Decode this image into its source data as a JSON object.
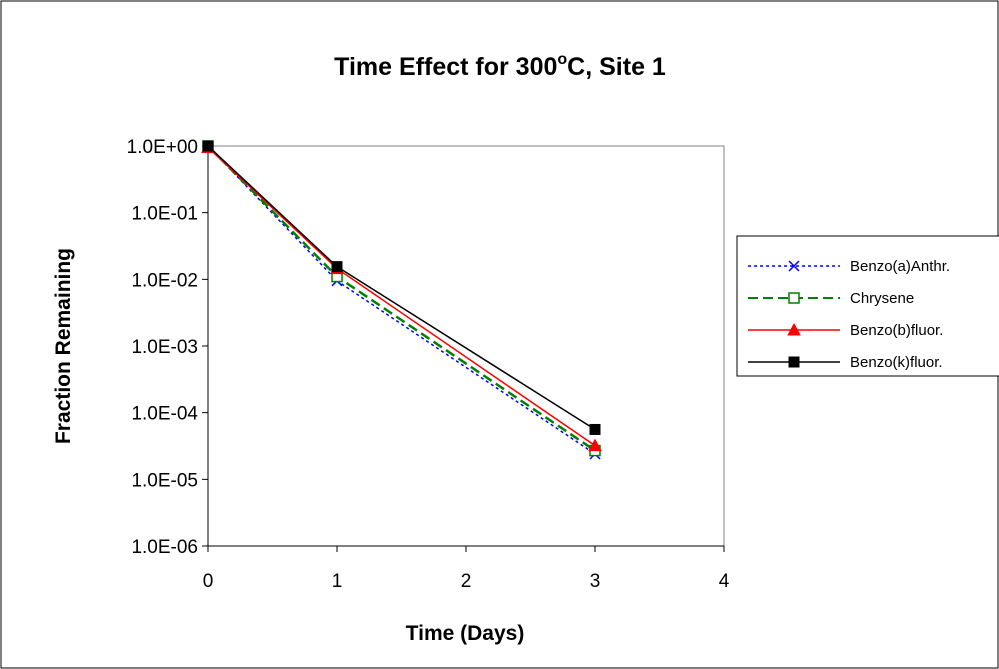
{
  "chart_data": {
    "type": "line",
    "title": "Time Effect for 300",
    "title_superscript": "o",
    "title_suffix": "C, Site 1",
    "xlabel": "Time (Days)",
    "ylabel": "Fraction Remaining",
    "xlim": [
      0,
      4
    ],
    "ylim": [
      1e-06,
      1
    ],
    "yscale": "log",
    "x_ticks": [
      0,
      1,
      2,
      3,
      4
    ],
    "x_tick_labels": [
      "0",
      "1",
      "2",
      "3",
      "4"
    ],
    "y_ticks": [
      1e-06,
      1e-05,
      0.0001,
      0.001,
      0.01,
      0.1,
      1
    ],
    "y_tick_labels": [
      "1.0E-06",
      "1.0E-05",
      "1.0E-04",
      "1.0E-03",
      "1.0E-02",
      "1.0E-01",
      "1.0E+00"
    ],
    "grid": false,
    "legend_position": "right",
    "series": [
      {
        "name": "Benzo(a)Anthr.",
        "color": "#0000ff",
        "dash": "dotted",
        "marker": "x",
        "x": [
          0,
          1,
          3
        ],
        "y": [
          1.0,
          0.0095,
          2.4e-05
        ]
      },
      {
        "name": "Chrysene",
        "color": "#008000",
        "dash": "dashed",
        "marker": "open-square",
        "x": [
          0,
          1,
          3
        ],
        "y": [
          1.0,
          0.011,
          2.7e-05
        ]
      },
      {
        "name": "Benzo(b)fluor.",
        "color": "#ff0000",
        "dash": "solid",
        "marker": "triangle",
        "x": [
          0,
          1,
          3
        ],
        "y": [
          0.95,
          0.0145,
          3.2e-05
        ]
      },
      {
        "name": "Benzo(k)fluor.",
        "color": "#000000",
        "dash": "solid",
        "marker": "square",
        "x": [
          0,
          1,
          3
        ],
        "y": [
          1.0,
          0.0155,
          5.6e-05
        ]
      }
    ]
  }
}
